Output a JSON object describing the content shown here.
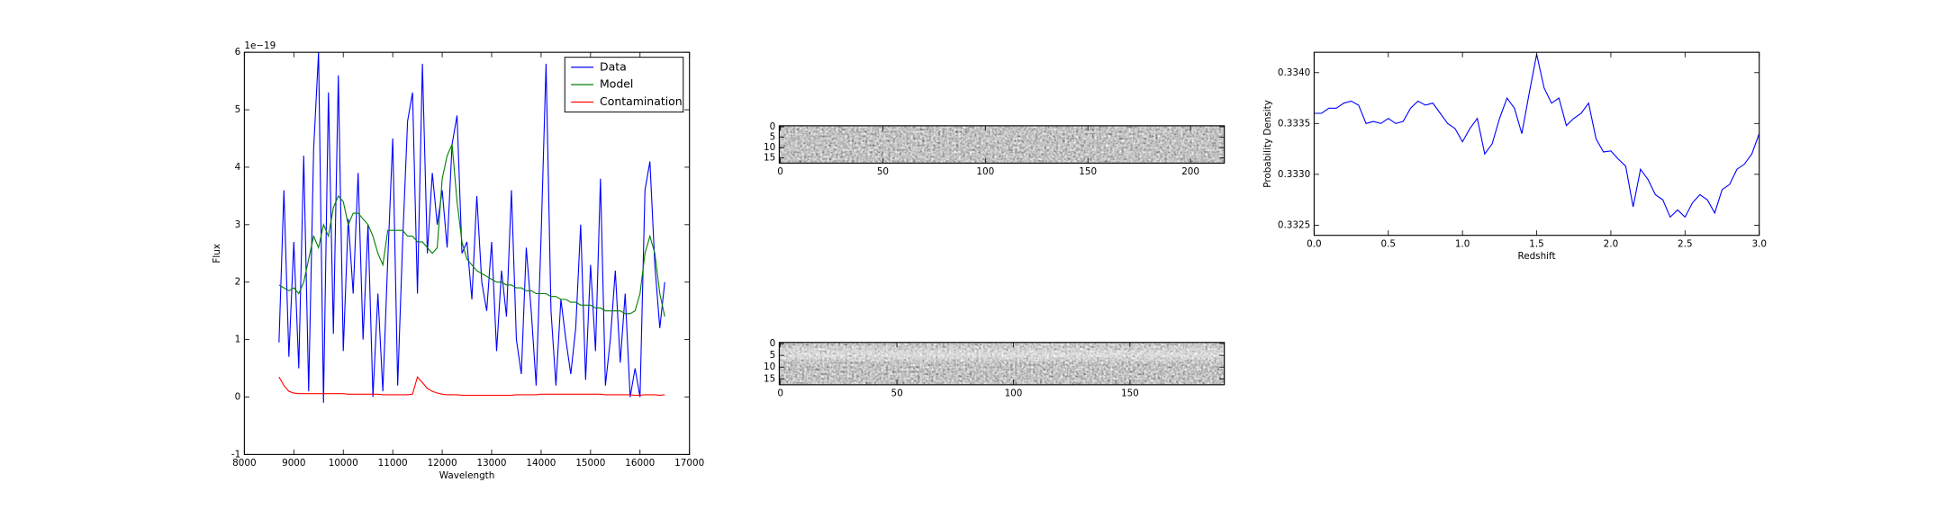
{
  "chart_data": [
    {
      "type": "line",
      "xlabel": "Wavelength",
      "ylabel": "Flux",
      "y_offset_label": "1e−19",
      "xlim": [
        8000,
        17000
      ],
      "xticks": [
        8000,
        9000,
        10000,
        11000,
        12000,
        13000,
        14000,
        15000,
        16000,
        17000
      ],
      "ylim": [
        -1,
        6
      ],
      "yticks": [
        -1,
        0,
        1,
        2,
        3,
        4,
        5,
        6
      ],
      "legend": "upper right",
      "x": [
        8700,
        8800,
        8900,
        9000,
        9100,
        9200,
        9300,
        9400,
        9500,
        9600,
        9700,
        9800,
        9900,
        10000,
        10100,
        10200,
        10300,
        10400,
        10500,
        10600,
        10700,
        10800,
        10900,
        11000,
        11100,
        11200,
        11300,
        11400,
        11500,
        11600,
        11700,
        11800,
        11900,
        12000,
        12100,
        12200,
        12300,
        12400,
        12500,
        12600,
        12700,
        12800,
        12900,
        13000,
        13100,
        13200,
        13300,
        13400,
        13500,
        13600,
        13700,
        13800,
        13900,
        14000,
        14100,
        14200,
        14300,
        14400,
        14500,
        14600,
        14700,
        14800,
        14900,
        15000,
        15100,
        15200,
        15300,
        15400,
        15500,
        15600,
        15700,
        15800,
        15900,
        16000,
        16100,
        16200,
        16300,
        16400,
        16500
      ],
      "series": [
        {
          "name": "Data",
          "color": "#0000ff",
          "values": [
            0.95,
            3.6,
            0.7,
            2.7,
            0.5,
            4.2,
            0.1,
            4.3,
            6.0,
            -0.1,
            5.3,
            1.1,
            5.6,
            0.8,
            3.1,
            1.8,
            3.9,
            1.0,
            3.0,
            0.0,
            1.8,
            0.1,
            2.4,
            4.5,
            0.2,
            2.7,
            4.8,
            5.3,
            1.8,
            5.8,
            2.5,
            3.9,
            3.0,
            3.6,
            2.6,
            4.4,
            4.9,
            2.5,
            2.7,
            1.7,
            3.5,
            2.0,
            1.5,
            2.7,
            0.8,
            2.2,
            1.4,
            3.6,
            1.0,
            0.4,
            2.6,
            1.5,
            0.2,
            2.8,
            5.8,
            1.5,
            0.2,
            1.7,
            1.0,
            0.4,
            1.2,
            3.0,
            0.3,
            2.3,
            0.8,
            3.8,
            0.2,
            1.0,
            2.2,
            0.6,
            1.8,
            0.0,
            0.5,
            0.0,
            3.6,
            4.1,
            2.3,
            1.2,
            2.0
          ]
        },
        {
          "name": "Model",
          "color": "#008000",
          "values": [
            1.95,
            1.9,
            1.85,
            1.9,
            1.8,
            2.0,
            2.4,
            2.8,
            2.6,
            3.0,
            2.8,
            3.3,
            3.5,
            3.4,
            3.0,
            3.2,
            3.2,
            3.1,
            3.0,
            2.8,
            2.5,
            2.3,
            2.9,
            2.9,
            2.9,
            2.9,
            2.8,
            2.8,
            2.7,
            2.7,
            2.6,
            2.5,
            2.6,
            3.8,
            4.2,
            4.4,
            3.4,
            2.7,
            2.4,
            2.3,
            2.2,
            2.15,
            2.1,
            2.05,
            2.0,
            2.0,
            1.95,
            1.95,
            1.9,
            1.9,
            1.85,
            1.85,
            1.8,
            1.8,
            1.8,
            1.75,
            1.75,
            1.7,
            1.7,
            1.65,
            1.65,
            1.6,
            1.6,
            1.6,
            1.55,
            1.55,
            1.5,
            1.5,
            1.5,
            1.5,
            1.45,
            1.45,
            1.5,
            1.8,
            2.5,
            2.8,
            2.5,
            1.8,
            1.4
          ]
        },
        {
          "name": "Contamination",
          "color": "#ff0000",
          "values": [
            0.35,
            0.2,
            0.1,
            0.07,
            0.06,
            0.06,
            0.06,
            0.06,
            0.06,
            0.06,
            0.06,
            0.06,
            0.06,
            0.06,
            0.05,
            0.05,
            0.05,
            0.05,
            0.05,
            0.05,
            0.05,
            0.04,
            0.04,
            0.04,
            0.04,
            0.04,
            0.04,
            0.05,
            0.35,
            0.25,
            0.15,
            0.1,
            0.07,
            0.05,
            0.04,
            0.04,
            0.04,
            0.03,
            0.03,
            0.03,
            0.03,
            0.03,
            0.03,
            0.03,
            0.03,
            0.03,
            0.03,
            0.03,
            0.04,
            0.04,
            0.04,
            0.04,
            0.04,
            0.05,
            0.05,
            0.05,
            0.05,
            0.05,
            0.05,
            0.05,
            0.05,
            0.05,
            0.05,
            0.05,
            0.05,
            0.05,
            0.04,
            0.04,
            0.04,
            0.04,
            0.04,
            0.04,
            0.03,
            0.03,
            0.04,
            0.04,
            0.04,
            0.03,
            0.04
          ]
        }
      ]
    },
    {
      "type": "image",
      "xlim": [
        -0.5,
        216.5
      ],
      "xticks": [
        0,
        50,
        100,
        150,
        200
      ],
      "ylim": [
        17.5,
        -0.5
      ],
      "yticks": [
        0,
        5,
        10,
        15
      ]
    },
    {
      "type": "image",
      "xlim": [
        -0.5,
        190.5
      ],
      "xticks": [
        0,
        50,
        100,
        150
      ],
      "ylim": [
        17.5,
        -0.5
      ],
      "yticks": [
        0,
        5,
        10,
        15
      ]
    },
    {
      "type": "line",
      "xlabel": "Redshift",
      "ylabel": "Probability Density",
      "xlim": [
        0,
        3
      ],
      "xticks": [
        {
          "value": 0,
          "label": "0.0"
        },
        0.5,
        {
          "value": 1,
          "label": "1.0"
        },
        1.5,
        {
          "value": 2,
          "label": "2.0"
        },
        2.5,
        {
          "value": 3,
          "label": "3.0"
        }
      ],
      "ylim": [
        0.3324,
        0.3342
      ],
      "yticks": [
        0.3325,
        {
          "value": 0.333,
          "label": "0.3330"
        },
        0.3335,
        {
          "value": 0.334,
          "label": "0.3340"
        }
      ],
      "x": [
        0,
        0.05,
        0.1,
        0.15,
        0.2,
        0.25,
        0.3,
        0.35,
        0.4,
        0.45,
        0.5,
        0.55,
        0.6,
        0.65,
        0.7,
        0.75,
        0.8,
        0.85,
        0.9,
        0.95,
        1,
        1.05,
        1.1,
        1.15,
        1.2,
        1.25,
        1.3,
        1.35,
        1.4,
        1.45,
        1.5,
        1.55,
        1.6,
        1.65,
        1.7,
        1.75,
        1.8,
        1.85,
        1.9,
        1.95,
        2,
        2.05,
        2.1,
        2.15,
        2.2,
        2.25,
        2.3,
        2.35,
        2.4,
        2.45,
        2.5,
        2.55,
        2.6,
        2.65,
        2.7,
        2.75,
        2.8,
        2.85,
        2.9,
        2.95,
        3
      ],
      "series": [
        {
          "color": "#0000ff",
          "values": [
            0.3336,
            0.3336,
            0.33365,
            0.33365,
            0.3337,
            0.33372,
            0.33368,
            0.3335,
            0.33352,
            0.3335,
            0.33355,
            0.3335,
            0.33352,
            0.33365,
            0.33372,
            0.33368,
            0.3337,
            0.3336,
            0.3335,
            0.33345,
            0.33332,
            0.33345,
            0.33355,
            0.3332,
            0.3333,
            0.33355,
            0.33375,
            0.33365,
            0.3334,
            0.3338,
            0.33418,
            0.33385,
            0.3337,
            0.33375,
            0.33348,
            0.33355,
            0.3336,
            0.3337,
            0.33335,
            0.33322,
            0.33323,
            0.33315,
            0.33308,
            0.33268,
            0.33305,
            0.33295,
            0.3328,
            0.33275,
            0.33258,
            0.33265,
            0.33258,
            0.33272,
            0.3328,
            0.33275,
            0.33262,
            0.33285,
            0.3329,
            0.33305,
            0.3331,
            0.3332,
            0.3334
          ]
        }
      ]
    }
  ]
}
